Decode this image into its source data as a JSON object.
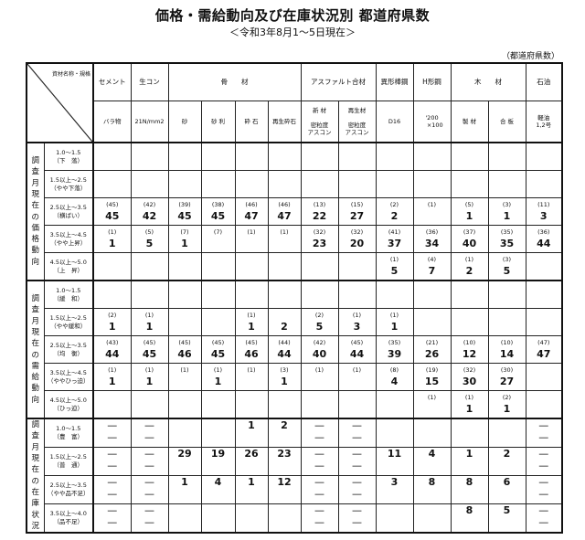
{
  "title": "価格・需給動向及び在庫状況別 都道府県数",
  "subtitle": "＜令和3年8月1～5日現在＞",
  "unit": "（都道府県数）",
  "header": {
    "corner": "資材名称・規格",
    "row1": [
      {
        "label": "セメント",
        "span": 1
      },
      {
        "label": "生コン",
        "span": 1
      },
      {
        "label": "骨　　材",
        "span": 4
      },
      {
        "label": "アスファルト合材",
        "span": 2
      },
      {
        "label": "異形棒鋼",
        "span": 1
      },
      {
        "label": "H形鋼",
        "span": 1
      },
      {
        "label": "木　　材",
        "span": 2
      },
      {
        "label": "石油",
        "span": 1
      }
    ],
    "row2": [
      "バラ物",
      "21N/mm2",
      "砂",
      "砂 利",
      "砕 石",
      "再生砕石",
      "新 材\n\n密粒度\nアスコン",
      "再生材\n\n密粒度\nアスコン",
      "D16",
      "'200\n　×100",
      "製 材",
      "合 板",
      "軽油\n1,2号"
    ]
  },
  "groups": [
    {
      "label": "調査月現在の価格動向",
      "rows": [
        {
          "label": "1.0～1.5\n（下　落）",
          "cells": [
            [
              "",
              ""
            ],
            [
              "",
              ""
            ],
            [
              "",
              ""
            ],
            [
              "",
              ""
            ],
            [
              "",
              ""
            ],
            [
              "",
              ""
            ],
            [
              "",
              ""
            ],
            [
              "",
              ""
            ],
            [
              "",
              ""
            ],
            [
              "",
              ""
            ],
            [
              "",
              ""
            ],
            [
              "",
              ""
            ],
            [
              "",
              ""
            ]
          ]
        },
        {
          "label": "1.5以上～2.5\n（やや下落）",
          "cells": [
            [
              "",
              ""
            ],
            [
              "",
              ""
            ],
            [
              "",
              ""
            ],
            [
              "",
              ""
            ],
            [
              "",
              ""
            ],
            [
              "",
              ""
            ],
            [
              "",
              ""
            ],
            [
              "",
              ""
            ],
            [
              "",
              ""
            ],
            [
              "",
              ""
            ],
            [
              "",
              ""
            ],
            [
              "",
              ""
            ],
            [
              "",
              ""
            ]
          ]
        },
        {
          "label": "2.5以上～3.5\n（横ばい）",
          "cells": [
            [
              "(45)",
              "45"
            ],
            [
              "(42)",
              "42"
            ],
            [
              "(39)",
              "45"
            ],
            [
              "(38)",
              "45"
            ],
            [
              "(46)",
              "47"
            ],
            [
              "(46)",
              "47"
            ],
            [
              "(13)",
              "22"
            ],
            [
              "(15)",
              "27"
            ],
            [
              "(2)",
              "2"
            ],
            [
              "(1)",
              ""
            ],
            [
              "(5)",
              "1"
            ],
            [
              "(3)",
              "1"
            ],
            [
              "(11)",
              "3"
            ]
          ]
        },
        {
          "label": "3.5以上～4.5\n（やや上昇）",
          "cells": [
            [
              "(1)",
              "1"
            ],
            [
              "(5)",
              "5"
            ],
            [
              "(7)",
              "1"
            ],
            [
              "(7)",
              ""
            ],
            [
              "(1)",
              ""
            ],
            [
              "(1)",
              ""
            ],
            [
              "(32)",
              "23"
            ],
            [
              "(32)",
              "20"
            ],
            [
              "(41)",
              "37"
            ],
            [
              "(36)",
              "34"
            ],
            [
              "(37)",
              "40"
            ],
            [
              "(35)",
              "35"
            ],
            [
              "(36)",
              "44"
            ]
          ]
        },
        {
          "label": "4.5以上～5.0\n（上　昇）",
          "cells": [
            [
              "",
              ""
            ],
            [
              "",
              ""
            ],
            [
              "",
              ""
            ],
            [
              "",
              ""
            ],
            [
              "",
              ""
            ],
            [
              "",
              ""
            ],
            [
              "",
              ""
            ],
            [
              "",
              ""
            ],
            [
              "(1)",
              "5"
            ],
            [
              "(4)",
              "7"
            ],
            [
              "(1)",
              "2"
            ],
            [
              "(3)",
              "5"
            ],
            [
              "",
              ""
            ]
          ]
        }
      ]
    },
    {
      "label": "調査月現在の需給動向",
      "rows": [
        {
          "label": "1.0～1.5\n（緩　和）",
          "cells": [
            [
              "",
              ""
            ],
            [
              "",
              ""
            ],
            [
              "",
              ""
            ],
            [
              "",
              ""
            ],
            [
              "",
              ""
            ],
            [
              "",
              ""
            ],
            [
              "",
              ""
            ],
            [
              "",
              ""
            ],
            [
              "",
              ""
            ],
            [
              "",
              ""
            ],
            [
              "",
              ""
            ],
            [
              "",
              ""
            ],
            [
              "",
              ""
            ]
          ]
        },
        {
          "label": "1.5以上～2.5\n（やや緩和）",
          "cells": [
            [
              "(2)",
              "1"
            ],
            [
              "(1)",
              "1"
            ],
            [
              "",
              ""
            ],
            [
              "",
              ""
            ],
            [
              "(1)",
              "1"
            ],
            [
              "",
              "2"
            ],
            [
              "(2)",
              "5"
            ],
            [
              "(1)",
              "3"
            ],
            [
              "(1)",
              "1"
            ],
            [
              "",
              ""
            ],
            [
              "",
              ""
            ],
            [
              "",
              ""
            ],
            [
              "",
              ""
            ]
          ]
        },
        {
          "label": "2.5以上～3.5\n（均　衡）",
          "cells": [
            [
              "(43)",
              "44"
            ],
            [
              "(45)",
              "45"
            ],
            [
              "(45)",
              "46"
            ],
            [
              "(45)",
              "45"
            ],
            [
              "(45)",
              "46"
            ],
            [
              "(44)",
              "44"
            ],
            [
              "(42)",
              "40"
            ],
            [
              "(45)",
              "44"
            ],
            [
              "(35)",
              "39"
            ],
            [
              "(21)",
              "26"
            ],
            [
              "(10)",
              "12"
            ],
            [
              "(10)",
              "14"
            ],
            [
              "(47)",
              "47"
            ]
          ]
        },
        {
          "label": "3.5以上～4.5\n（ややひっ迫）",
          "cells": [
            [
              "(1)",
              "1"
            ],
            [
              "(1)",
              "1"
            ],
            [
              "(1)",
              ""
            ],
            [
              "(1)",
              "1"
            ],
            [
              "(1)",
              ""
            ],
            [
              "(3)",
              "1"
            ],
            [
              "(1)",
              ""
            ],
            [
              "(1)",
              ""
            ],
            [
              "(8)",
              "4"
            ],
            [
              "(19)",
              "15"
            ],
            [
              "(32)",
              "30"
            ],
            [
              "(30)",
              "27"
            ],
            [
              "",
              ""
            ]
          ]
        },
        {
          "label": "4.5以上～5.0\n（ひっ迫）",
          "cells": [
            [
              "",
              ""
            ],
            [
              "",
              ""
            ],
            [
              "",
              ""
            ],
            [
              "",
              ""
            ],
            [
              "",
              ""
            ],
            [
              "",
              ""
            ],
            [
              "",
              ""
            ],
            [
              "",
              ""
            ],
            [
              "",
              ""
            ],
            [
              "(1)",
              ""
            ],
            [
              "(1)",
              "1"
            ],
            [
              "(2)",
              "1"
            ],
            [
              "",
              ""
            ]
          ]
        }
      ]
    },
    {
      "label": "調査月現在の在庫状況",
      "rows": [
        {
          "label": "1.0～1.5\n（豊　富）",
          "cells": [
            [
              "—",
              "—"
            ],
            [
              "—",
              "—"
            ],
            [
              "",
              ""
            ],
            [
              "",
              ""
            ],
            [
              "1",
              ""
            ],
            [
              "2",
              ""
            ],
            [
              "—",
              "—"
            ],
            [
              "—",
              "—"
            ],
            [
              "",
              ""
            ],
            [
              "",
              ""
            ],
            [
              "",
              ""
            ],
            [
              "",
              ""
            ],
            [
              "—",
              "—"
            ]
          ]
        },
        {
          "label": "1.5以上～2.5\n（普　通）",
          "cells": [
            [
              "—",
              "—"
            ],
            [
              "—",
              "—"
            ],
            [
              "29",
              ""
            ],
            [
              "19",
              ""
            ],
            [
              "26",
              ""
            ],
            [
              "23",
              ""
            ],
            [
              "—",
              "—"
            ],
            [
              "—",
              "—"
            ],
            [
              "11",
              ""
            ],
            [
              "4",
              ""
            ],
            [
              "1",
              ""
            ],
            [
              "2",
              ""
            ],
            [
              "—",
              "—"
            ]
          ]
        },
        {
          "label": "2.5以上～3.5\n（やや品不足）",
          "cells": [
            [
              "—",
              "—"
            ],
            [
              "—",
              "—"
            ],
            [
              "1",
              ""
            ],
            [
              "4",
              ""
            ],
            [
              "1",
              ""
            ],
            [
              "12",
              ""
            ],
            [
              "—",
              "—"
            ],
            [
              "—",
              "—"
            ],
            [
              "3",
              ""
            ],
            [
              "8",
              ""
            ],
            [
              "8",
              ""
            ],
            [
              "6",
              ""
            ],
            [
              "—",
              "—"
            ]
          ]
        },
        {
          "label": "3.5以上～4.0\n（品不足）",
          "cells": [
            [
              "—",
              "—"
            ],
            [
              "—",
              "—"
            ],
            [
              "",
              ""
            ],
            [
              "",
              ""
            ],
            [
              "",
              ""
            ],
            [
              "",
              ""
            ],
            [
              "—",
              "—"
            ],
            [
              "—",
              "—"
            ],
            [
              "",
              ""
            ],
            [
              "",
              ""
            ],
            [
              "8",
              ""
            ],
            [
              "5",
              ""
            ],
            [
              "—",
              "—"
            ]
          ]
        }
      ]
    }
  ]
}
